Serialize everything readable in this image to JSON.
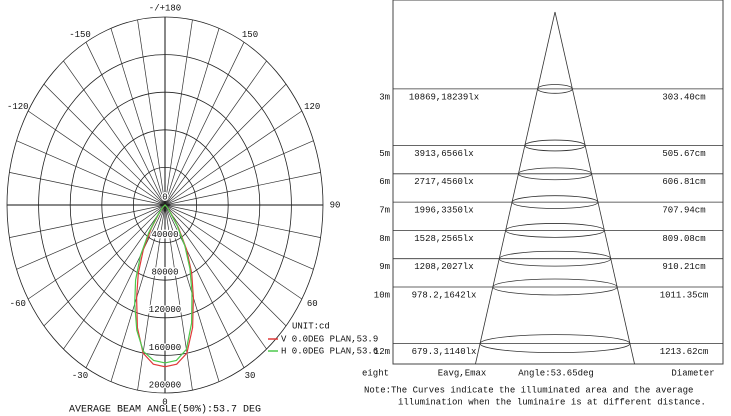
{
  "chart_data": [
    {
      "type": "polar",
      "rlim": [
        0,
        200000
      ],
      "rticks": [
        0,
        40000,
        80000,
        120000,
        160000,
        200000
      ],
      "angle_ticks": [
        {
          "value": 180,
          "label": "-/+180"
        },
        -150,
        150,
        -120,
        120,
        {
          "value": -90,
          "label": "90"
        },
        90,
        -60,
        60,
        -30,
        30,
        0
      ],
      "unit": "UNIT:cd",
      "series": [
        {
          "name": "V 0.0DEG PLAN,53.9",
          "color": "#e03a3a",
          "theta": [
            -60,
            -50,
            -40,
            -35,
            -30,
            -25,
            -20,
            -15,
            -10,
            -5,
            0,
            5,
            10,
            15,
            20,
            25,
            30,
            35,
            40,
            50,
            60
          ],
          "values": [
            0,
            3000,
            12000,
            30000,
            55000,
            80000,
            105000,
            135000,
            160000,
            170000,
            172000,
            170000,
            160000,
            135000,
            105000,
            80000,
            55000,
            30000,
            12000,
            3000,
            0
          ]
        },
        {
          "name": "H 0.0DEG PLAN,53.6",
          "color": "#4cc94c",
          "theta": [
            -60,
            -50,
            -40,
            -35,
            -30,
            -25,
            -20,
            -15,
            -10,
            -5,
            0,
            5,
            10,
            15,
            20,
            25,
            30,
            35,
            40,
            50,
            60
          ],
          "values": [
            0,
            4000,
            15000,
            36000,
            62000,
            88000,
            112000,
            138000,
            158000,
            166000,
            168000,
            166000,
            156000,
            130000,
            100000,
            75000,
            50000,
            27000,
            10000,
            3000,
            0
          ]
        }
      ],
      "footer": "AVERAGE BEAM ANGLE(50%):53.7 DEG"
    },
    {
      "type": "cone",
      "rows": [
        {
          "height": 3,
          "height_label": "3m",
          "illuminance": "10869,18239lx",
          "diameter": "303.40cm"
        },
        {
          "height": 5,
          "height_label": "5m",
          "illuminance": "3913,6566lx",
          "diameter": "505.67cm"
        },
        {
          "height": 6,
          "height_label": "6m",
          "illuminance": "2717,4560lx",
          "diameter": "606.81cm"
        },
        {
          "height": 7,
          "height_label": "7m",
          "illuminance": "1996,3350lx",
          "diameter": "707.94cm"
        },
        {
          "height": 8,
          "height_label": "8m",
          "illuminance": "1528,2565lx",
          "diameter": "809.08cm"
        },
        {
          "height": 9,
          "height_label": "9m",
          "illuminance": "1208,2027lx",
          "diameter": "910.21cm"
        },
        {
          "height": 10,
          "height_label": "10m",
          "illuminance": "978.2,1642lx",
          "diameter": "1011.35cm"
        },
        {
          "height": 12,
          "height_label": "12m",
          "illuminance": "679.3,1140lx",
          "diameter": "1213.62cm"
        }
      ],
      "header": {
        "height": "eight",
        "illuminance": "Eavg,Emax",
        "angle": "Angle:53.65deg",
        "diameter": "Diameter"
      },
      "note": [
        "Note:The Curves indicate the illuminated area and the average",
        "illumination when the luminaire is at different distance."
      ]
    }
  ]
}
